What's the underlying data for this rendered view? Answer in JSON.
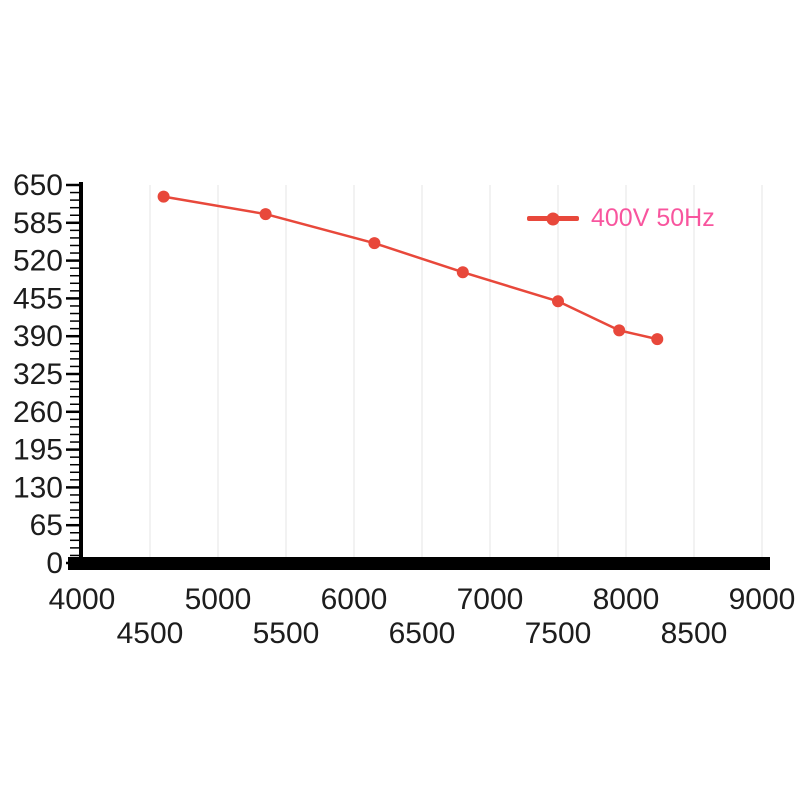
{
  "chart_data": {
    "type": "line",
    "title": "",
    "xlabel": "",
    "ylabel": "",
    "xlim": [
      4000,
      9000
    ],
    "ylim": [
      0,
      650
    ],
    "x_major_ticks": [
      4000,
      5000,
      6000,
      7000,
      8000,
      9000
    ],
    "x_minor_tick_labels": [
      4500,
      5500,
      6500,
      7500,
      8500
    ],
    "y_ticks": [
      0,
      65,
      130,
      195,
      260,
      325,
      390,
      455,
      520,
      585,
      650
    ],
    "y_minor_tick_step": 13,
    "grid": "vertical-light",
    "legend_position": "top-right",
    "axis_color": "#000000",
    "grid_color": "#e4e4e4",
    "tick_label_color": "#1d1d1d",
    "series": [
      {
        "name": "400V 50Hz",
        "color": "#e8483b",
        "label_color": "#f8559e",
        "x": [
          4600,
          5350,
          6150,
          6800,
          7500,
          7950,
          8230
        ],
        "y": [
          630,
          600,
          550,
          500,
          450,
          400,
          385
        ]
      }
    ]
  }
}
